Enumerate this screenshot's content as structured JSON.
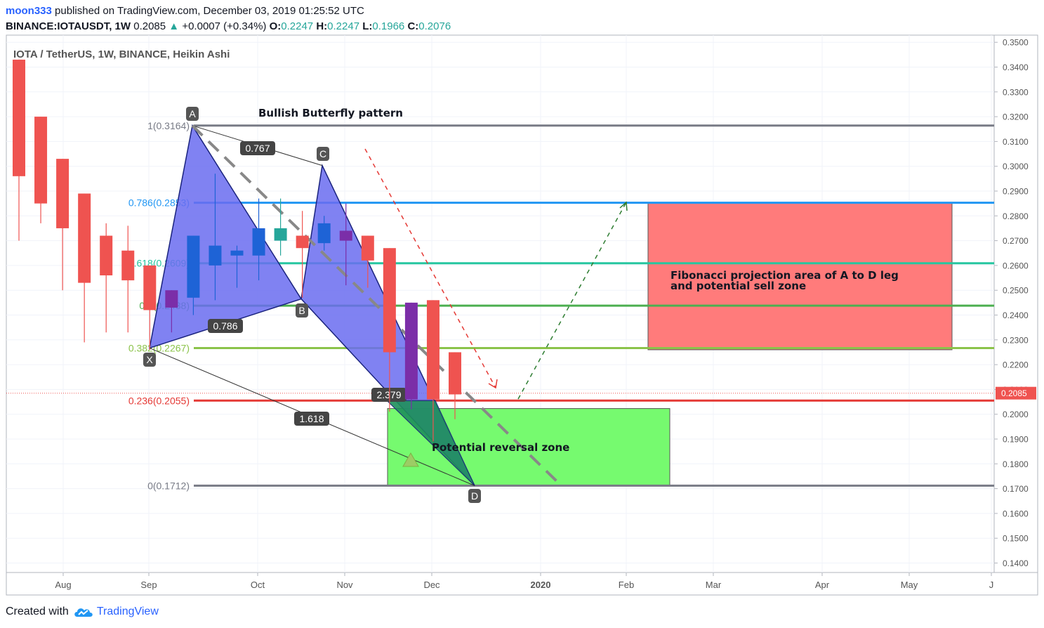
{
  "header": {
    "username": "moon333",
    "published_text": "published on TradingView.com, December 03, 2019 01:25:52 UTC",
    "symbol": "BINANCE:IOTAUSDT, 1W",
    "last": "0.2085",
    "change": "+0.0007 (+0.34%)",
    "o_label": "O:",
    "o": "0.2247",
    "h_label": "H:",
    "h": "0.2247",
    "l_label": "L:",
    "l": "0.1966",
    "c_label": "C:",
    "c": "0.2076"
  },
  "footer": {
    "created_with": "Created with",
    "brand": "TradingView"
  },
  "chart_data": {
    "type": "candlestick",
    "title": "IOTA / TetherUS, 1W, BINANCE, Heikin Ashi",
    "ylim": [
      0.135,
      0.3525
    ],
    "y_ticks": [
      "0.1400",
      "0.1500",
      "0.1600",
      "0.1700",
      "0.1800",
      "0.1900",
      "0.2000",
      "0.2100",
      "0.2200",
      "0.2300",
      "0.2400",
      "0.2500",
      "0.2600",
      "0.2700",
      "0.2800",
      "0.2900",
      "0.3000",
      "0.3100",
      "0.3200",
      "0.3300",
      "0.3400",
      "0.3500"
    ],
    "x_ticks": [
      "Aug",
      "Sep",
      "Oct",
      "Nov",
      "Dec",
      "2020",
      "Feb",
      "Mar",
      "Apr",
      "May",
      "J"
    ],
    "last_price_label": "0.2085",
    "candles": [
      {
        "open": 0.343,
        "close": 0.296,
        "high": 0.343,
        "low": 0.27,
        "color": "red"
      },
      {
        "open": 0.32,
        "close": 0.285,
        "high": 0.32,
        "low": 0.277,
        "color": "red"
      },
      {
        "open": 0.303,
        "close": 0.275,
        "high": 0.303,
        "low": 0.25,
        "color": "red"
      },
      {
        "open": 0.289,
        "close": 0.253,
        "high": 0.289,
        "low": 0.229,
        "color": "red"
      },
      {
        "open": 0.272,
        "close": 0.256,
        "high": 0.277,
        "low": 0.233,
        "color": "red"
      },
      {
        "open": 0.266,
        "close": 0.254,
        "high": 0.276,
        "low": 0.233,
        "color": "red"
      },
      {
        "open": 0.26,
        "close": 0.242,
        "high": 0.26,
        "low": 0.226,
        "color": "red"
      },
      {
        "open": 0.243,
        "close": 0.25,
        "high": 0.25,
        "low": 0.233,
        "color": "purple"
      },
      {
        "open": 0.247,
        "close": 0.272,
        "high": 0.272,
        "low": 0.24,
        "color": "blue"
      },
      {
        "open": 0.26,
        "close": 0.268,
        "high": 0.297,
        "low": 0.246,
        "color": "blue"
      },
      {
        "open": 0.264,
        "close": 0.266,
        "high": 0.268,
        "low": 0.251,
        "color": "blue"
      },
      {
        "open": 0.264,
        "close": 0.275,
        "high": 0.287,
        "low": 0.254,
        "color": "blue"
      },
      {
        "open": 0.27,
        "close": 0.275,
        "high": 0.287,
        "low": 0.264,
        "color": "teal"
      },
      {
        "open": 0.272,
        "close": 0.267,
        "high": 0.282,
        "low": 0.247,
        "color": "red"
      },
      {
        "open": 0.269,
        "close": 0.277,
        "high": 0.28,
        "low": 0.266,
        "color": "blue"
      },
      {
        "open": 0.274,
        "close": 0.27,
        "high": 0.285,
        "low": 0.252,
        "color": "purple"
      },
      {
        "open": 0.272,
        "close": 0.262,
        "high": 0.272,
        "low": 0.251,
        "color": "red"
      },
      {
        "open": 0.267,
        "close": 0.225,
        "high": 0.267,
        "low": 0.201,
        "color": "red"
      },
      {
        "open": 0.245,
        "close": 0.206,
        "high": 0.245,
        "low": 0.202,
        "color": "purple"
      },
      {
        "open": 0.246,
        "close": 0.206,
        "high": 0.246,
        "low": 0.189,
        "color": "red"
      },
      {
        "open": 0.225,
        "close": 0.208,
        "high": 0.225,
        "low": 0.198,
        "color": "red"
      }
    ],
    "fib_levels": [
      {
        "label": "1(0.3164)",
        "value": 0.3164,
        "color": "#787b86"
      },
      {
        "label": "0.786(0.2853)",
        "value": 0.2853,
        "color": "#2196f3"
      },
      {
        "label": "0.618(0.2609)",
        "value": 0.2609,
        "color": "#26c6a0"
      },
      {
        "label": "0.5(0.2438)",
        "value": 0.2438,
        "color": "#4caf50"
      },
      {
        "label": "0.382(0.2267)",
        "value": 0.2267,
        "color": "#8bc34a"
      },
      {
        "label": "0.236(0.2055)",
        "value": 0.2055,
        "color": "#e53935"
      },
      {
        "label": "0(0.1712)",
        "value": 0.1712,
        "color": "#787b86"
      }
    ],
    "pattern": {
      "name": "Bullish Butterfly pattern",
      "points": [
        {
          "label": "X",
          "value": 0.2267
        },
        {
          "label": "A",
          "value": 0.3164
        },
        {
          "label": "B",
          "value": 0.2465
        },
        {
          "label": "C",
          "value": 0.3003
        },
        {
          "label": "D",
          "value": 0.1712
        }
      ],
      "ratios": [
        "0.767",
        "0.786",
        "1.618",
        "2.379"
      ]
    },
    "annotations": {
      "sell_zone": "Fibonacci projection area of A to D leg and potential sell zone",
      "reversal_zone": "Potential reversal zone"
    },
    "colors": {
      "up": "#26a69a",
      "down": "#ef5350",
      "neutral_up": "#2962ff",
      "neutral_down": "#7b1fa2"
    }
  }
}
